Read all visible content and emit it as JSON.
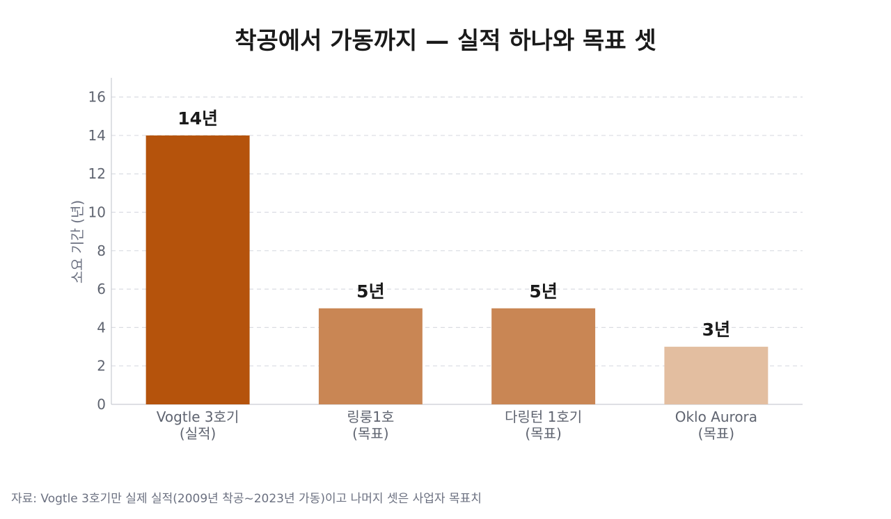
{
  "chart_data": {
    "type": "bar",
    "title": "착공에서 가동까지 — 실적 하나와 목표 셋",
    "ylabel": "소요 기간 (년)",
    "xlabel": "",
    "ylim": [
      0,
      17
    ],
    "yticks": [
      0,
      2,
      4,
      6,
      8,
      10,
      12,
      14,
      16
    ],
    "grid": "horizontal-dashed",
    "categories": [
      [
        "Vogtle 3호기",
        "(실적)"
      ],
      [
        "링룽1호",
        "(목표)"
      ],
      [
        "다링턴 1호기",
        "(목표)"
      ],
      [
        "Oklo Aurora",
        "(목표)"
      ]
    ],
    "values": [
      14,
      5,
      5,
      3
    ],
    "value_labels": [
      "14년",
      "5년",
      "5년",
      "3년"
    ],
    "colors": [
      "#b5530c",
      "#c98654",
      "#c98654",
      "#e3bea0"
    ],
    "source_note": "자료: Vogtle 3호기만 실제 실적(2009년 착공~2023년 가동)이고 나머지 셋은 사업자 목표치"
  }
}
